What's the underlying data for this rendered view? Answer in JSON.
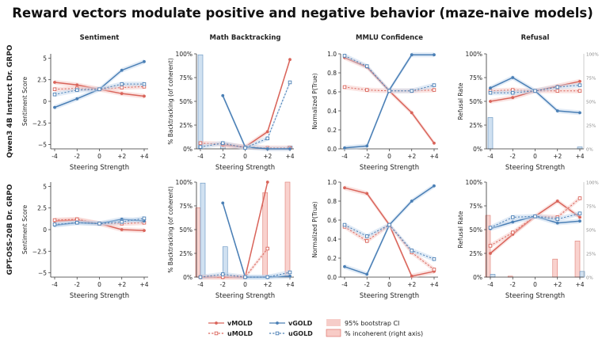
{
  "figure_title": "Reward vectors modulate positive and negative behavior (maze-naive models)",
  "x_axis_label": "Steering Strength",
  "colors": {
    "mold": "#d9645a",
    "gold": "#4a7fb5",
    "ci_mold": "#f4c0bc",
    "ci_gold": "#bcd3ea",
    "incoherent_fill": "#f8cbc6",
    "incoherent_fill_blue": "#c8dcef"
  },
  "legend": {
    "v_mold": "vMOLD",
    "u_mold": "uMOLD",
    "v_gold": "vGOLD",
    "u_gold": "uGOLD",
    "ci": "95% bootstrap CI",
    "incoherent": "% incoherent (right axis)"
  },
  "chart_data": [
    {
      "type": "line",
      "row": "Qwen3 4B Instruct Dr. GRPO",
      "col_title": "Sentiment",
      "ylabel": "Sentiment Score",
      "ylim": [
        -5.5,
        5.5
      ],
      "yticks": [
        5,
        2.5,
        0,
        -2.5,
        -5
      ],
      "ytick_labels": [
        "5",
        "2.5",
        "0",
        "−2.5",
        "−5"
      ],
      "x": [
        -4,
        -2,
        0,
        2,
        4
      ],
      "xtick_labels": [
        "-4",
        "-2",
        "0",
        "+2",
        "+4"
      ],
      "series": [
        {
          "name": "vMOLD",
          "values": [
            2.2,
            1.9,
            1.4,
            0.9,
            0.6
          ]
        },
        {
          "name": "uMOLD",
          "values": [
            1.4,
            1.5,
            1.4,
            1.6,
            1.7
          ]
        },
        {
          "name": "vGOLD",
          "values": [
            -0.7,
            0.3,
            1.4,
            3.6,
            4.6
          ]
        },
        {
          "name": "uGOLD",
          "values": [
            0.8,
            1.3,
            1.4,
            2.0,
            2.0
          ]
        }
      ]
    },
    {
      "type": "line",
      "row": "Qwen3 4B Instruct Dr. GRPO",
      "col_title": "Math Backtracking",
      "ylabel": "% Backtracking (of coherent)",
      "ylim": [
        0,
        100
      ],
      "yticks": [
        100,
        75,
        50,
        25,
        0
      ],
      "ytick_labels": [
        "100%",
        "75%",
        "50%",
        "25%",
        "0%"
      ],
      "x": [
        -4,
        -2,
        0,
        2,
        4
      ],
      "xtick_labels": [
        "-4",
        "-2",
        "0",
        "+2",
        "+4"
      ],
      "series": [
        {
          "name": "vMOLD",
          "values": [
            null,
            4,
            2,
            18,
            94
          ]
        },
        {
          "name": "uMOLD",
          "values": [
            6,
            5,
            2,
            1,
            1
          ]
        },
        {
          "name": "vGOLD",
          "values": [
            null,
            56,
            2,
            0,
            0
          ]
        },
        {
          "name": "uGOLD",
          "values": [
            2,
            6,
            1,
            11,
            70
          ]
        }
      ],
      "incoherent": {
        "values": [
          99,
          6,
          0,
          0,
          3
        ],
        "color": "gold"
      }
    },
    {
      "type": "line",
      "row": "Qwen3 4B Instruct Dr. GRPO",
      "col_title": "MMLU Confidence",
      "ylabel": "Normalized P(True)",
      "ylim": [
        0,
        1
      ],
      "yticks": [
        1,
        0.8,
        0.6,
        0.4,
        0.2,
        0
      ],
      "ytick_labels": [
        "1.0",
        "0.8",
        "0.6",
        "0.4",
        "0.2",
        "0.0"
      ],
      "x": [
        -4,
        -2,
        0,
        2,
        4
      ],
      "xtick_labels": [
        "-4",
        "-2",
        "0",
        "+2",
        "+4"
      ],
      "series": [
        {
          "name": "vMOLD",
          "values": [
            0.96,
            0.86,
            0.61,
            0.38,
            0.06
          ]
        },
        {
          "name": "uMOLD",
          "values": [
            0.65,
            0.62,
            0.61,
            0.61,
            0.62
          ]
        },
        {
          "name": "vGOLD",
          "values": [
            0.01,
            0.03,
            0.62,
            0.99,
            0.99
          ]
        },
        {
          "name": "uGOLD",
          "values": [
            0.98,
            0.87,
            0.61,
            0.61,
            0.67
          ]
        }
      ]
    },
    {
      "type": "line",
      "row": "Qwen3 4B Instruct Dr. GRPO",
      "col_title": "Refusal",
      "ylabel": "Refusal Rate",
      "ylim": [
        0,
        100
      ],
      "yticks": [
        100,
        75,
        50,
        25,
        0
      ],
      "ytick_labels": [
        "100%",
        "75%",
        "50%",
        "25%",
        "0%"
      ],
      "y2label": "% incoherent",
      "y2tick_labels": [
        "100%",
        "75%",
        "50%",
        "25%",
        "0%"
      ],
      "x": [
        -4,
        -2,
        0,
        2,
        4
      ],
      "xtick_labels": [
        "-4",
        "-2",
        "0",
        "+2",
        "+4"
      ],
      "series": [
        {
          "name": "vMOLD",
          "values": [
            50,
            54,
            61,
            66,
            71
          ]
        },
        {
          "name": "uMOLD",
          "values": [
            61,
            62,
            61,
            61,
            61
          ]
        },
        {
          "name": "vGOLD",
          "values": [
            64,
            75,
            61,
            40,
            38
          ]
        },
        {
          "name": "uGOLD",
          "values": [
            59,
            59,
            61,
            65,
            67
          ]
        }
      ],
      "incoherent": {
        "values": [
          33,
          0,
          0,
          0,
          2
        ],
        "color": "gold"
      }
    },
    {
      "type": "line",
      "row": "GPT-OSS-20B Dr. GRPO",
      "col_title": "Sentiment",
      "ylabel": "Sentiment Score",
      "ylim": [
        -5.5,
        5.5
      ],
      "yticks": [
        5,
        2.5,
        0,
        -2.5,
        -5
      ],
      "ytick_labels": [
        "5",
        "2.5",
        "0",
        "−2.5",
        "−5"
      ],
      "x": [
        -4,
        -2,
        0,
        2,
        4
      ],
      "xtick_labels": [
        "-4",
        "-2",
        "0",
        "+2",
        "+4"
      ],
      "series": [
        {
          "name": "vMOLD",
          "values": [
            1.0,
            1.1,
            0.7,
            0.0,
            -0.1
          ]
        },
        {
          "name": "uMOLD",
          "values": [
            1.1,
            1.2,
            0.7,
            0.7,
            0.8
          ]
        },
        {
          "name": "vGOLD",
          "values": [
            0.5,
            0.8,
            0.7,
            1.2,
            1.0
          ]
        },
        {
          "name": "uGOLD",
          "values": [
            0.6,
            0.8,
            0.7,
            0.9,
            1.3
          ]
        }
      ]
    },
    {
      "type": "line",
      "row": "GPT-OSS-20B Dr. GRPO",
      "col_title": "Math Backtracking",
      "ylabel": "% Backtracking (of coherent)",
      "ylim": [
        0,
        100
      ],
      "yticks": [
        100,
        75,
        50,
        25,
        0
      ],
      "ytick_labels": [
        "100%",
        "75%",
        "50%",
        "25%",
        "0%"
      ],
      "x": [
        -4,
        -2,
        0,
        2,
        4
      ],
      "xtick_labels": [
        "-4",
        "-2",
        "0",
        "+2",
        "+4"
      ],
      "series": [
        {
          "name": "vMOLD",
          "values": [
            0,
            0,
            0,
            100,
            null
          ]
        },
        {
          "name": "uMOLD",
          "values": [
            0,
            0,
            0,
            30,
            null
          ]
        },
        {
          "name": "vGOLD",
          "values": [
            null,
            78,
            0,
            0,
            1
          ]
        },
        {
          "name": "uGOLD",
          "values": [
            0,
            3,
            0,
            0,
            5
          ]
        }
      ],
      "incoherent": {
        "values": [
          73,
          0,
          0,
          89,
          100
        ],
        "color": "mold"
      },
      "incoherent_gold": {
        "values": [
          99,
          32,
          0,
          0,
          0
        ]
      }
    },
    {
      "type": "line",
      "row": "GPT-OSS-20B Dr. GRPO",
      "col_title": "MMLU Confidence",
      "ylabel": "Normalized P(True)",
      "ylim": [
        0,
        1
      ],
      "yticks": [
        1,
        0.8,
        0.6,
        0.4,
        0.2,
        0
      ],
      "ytick_labels": [
        "1.0",
        "0.8",
        "0.6",
        "0.4",
        "0.2",
        "0.0"
      ],
      "x": [
        -4,
        -2,
        0,
        2,
        4
      ],
      "xtick_labels": [
        "-4",
        "-2",
        "0",
        "+2",
        "+4"
      ],
      "series": [
        {
          "name": "vMOLD",
          "values": [
            0.94,
            0.88,
            0.55,
            0.01,
            0.06
          ]
        },
        {
          "name": "uMOLD",
          "values": [
            0.53,
            0.38,
            0.55,
            0.26,
            0.08
          ]
        },
        {
          "name": "vGOLD",
          "values": [
            0.11,
            0.03,
            0.55,
            0.8,
            0.96
          ]
        },
        {
          "name": "uGOLD",
          "values": [
            0.55,
            0.43,
            0.55,
            0.28,
            0.19
          ]
        }
      ]
    },
    {
      "type": "line",
      "row": "GPT-OSS-20B Dr. GRPO",
      "col_title": "Refusal",
      "ylabel": "Refusal Rate",
      "ylim": [
        0,
        100
      ],
      "yticks": [
        100,
        75,
        50,
        25,
        0
      ],
      "ytick_labels": [
        "100%",
        "75%",
        "50%",
        "25%",
        "0%"
      ],
      "y2label": "% incoherent",
      "y2tick_labels": [
        "100%",
        "75%",
        "50%",
        "25%",
        "0%"
      ],
      "x": [
        -4,
        -2,
        0,
        2,
        4
      ],
      "xtick_labels": [
        "-4",
        "-2",
        "0",
        "+2",
        "+4"
      ],
      "series": [
        {
          "name": "vMOLD",
          "values": [
            25,
            45,
            64,
            80,
            63
          ]
        },
        {
          "name": "uMOLD",
          "values": [
            33,
            47,
            64,
            63,
            83
          ]
        },
        {
          "name": "vGOLD",
          "values": [
            51,
            58,
            64,
            57,
            59
          ]
        },
        {
          "name": "uGOLD",
          "values": [
            52,
            63,
            64,
            61,
            67
          ]
        }
      ],
      "incoherent": {
        "values": [
          65,
          1,
          0,
          19,
          38
        ],
        "color": "mold"
      },
      "incoherent_gold": {
        "values": [
          3,
          0,
          0,
          0,
          6
        ]
      }
    }
  ]
}
